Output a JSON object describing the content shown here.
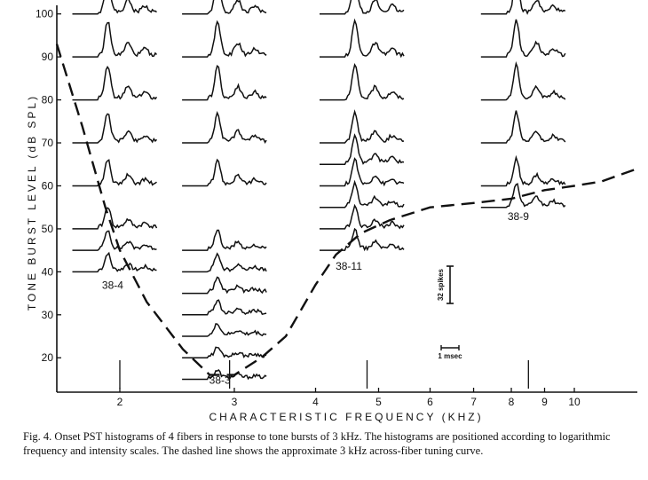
{
  "chart_data": {
    "type": "line",
    "xlabel": "CHARACTERISTIC FREQUENCY (KHZ)",
    "ylabel": "TONE BURST LEVEL (dB SPL)",
    "x_scale": "log",
    "xlim": [
      1.6,
      12.5
    ],
    "ylim": [
      12,
      102
    ],
    "x_ticks": [
      "2",
      "3",
      "4",
      "5",
      "6",
      "7",
      "8",
      "9",
      "10"
    ],
    "y_ticks": [
      "20",
      "30",
      "40",
      "50",
      "60",
      "70",
      "80",
      "90",
      "100"
    ],
    "tuning_curve": {
      "style": "dashed",
      "x": [
        1.6,
        1.75,
        1.9,
        2.0,
        2.2,
        2.5,
        2.75,
        3.0,
        3.3,
        3.6,
        4.0,
        4.3,
        4.7,
        5.2,
        6.0,
        7.0,
        8.0,
        9.0,
        10.0,
        11.0,
        12.5
      ],
      "y": [
        93,
        74,
        55,
        45,
        33,
        22,
        16,
        16,
        20,
        25,
        37,
        44,
        49,
        52,
        55,
        56,
        57,
        59,
        60,
        61,
        64
      ]
    },
    "fibers": [
      {
        "label": "38-4",
        "cf_khz": 2.0,
        "levels": [
          40,
          45,
          50,
          60,
          70,
          80,
          90,
          100
        ]
      },
      {
        "label": "38-3",
        "cf_khz": 2.95,
        "levels": [
          15,
          20,
          25,
          30,
          35,
          40,
          45,
          60,
          70,
          80,
          90,
          100
        ]
      },
      {
        "label": "38-11",
        "cf_khz": 4.8,
        "levels": [
          45,
          50,
          55,
          60,
          65,
          70,
          80,
          90,
          100
        ]
      },
      {
        "label": "38-9",
        "cf_khz": 8.5,
        "levels": [
          55,
          60,
          70,
          80,
          90,
          100
        ]
      }
    ],
    "scale_bars": {
      "spikes": "32 spikes",
      "time": "1 msec"
    }
  },
  "caption": "Fig. 4. Onset PST histograms of 4 fibers in response to tone bursts of 3 kHz. The histograms are positioned according to logarithmic frequency and intensity scales. The dashed line shows the approximate 3 kHz across-fiber tuning curve.",
  "colors": {
    "ink": "#111111",
    "background": "#ffffff"
  }
}
